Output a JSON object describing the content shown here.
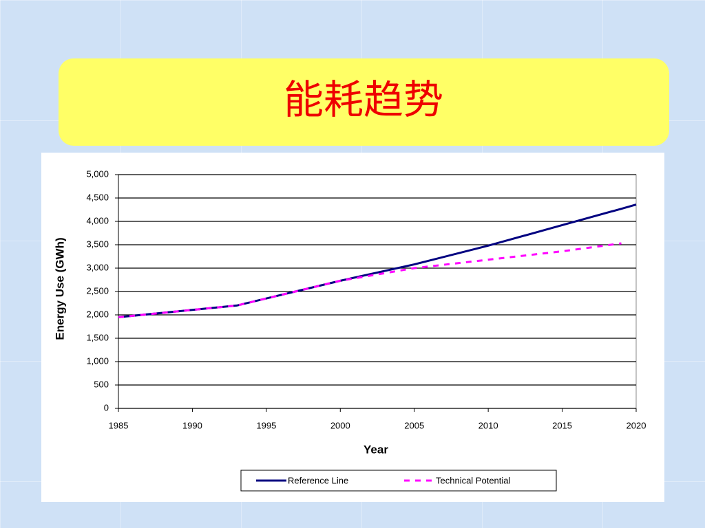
{
  "chart_data": {
    "type": "line",
    "title": "能耗趋势",
    "x_label": "Year",
    "y_label": "Energy Use (GWh)",
    "x": [
      1985,
      1993,
      2000,
      2005,
      2010,
      2015,
      2019,
      2020
    ],
    "series": [
      {
        "name": "Reference Line",
        "color": "#000080",
        "dash": false,
        "values": [
          1950,
          2200,
          2730,
          3080,
          3480,
          3920,
          4270,
          4360
        ]
      },
      {
        "name": "Technical Potential",
        "color": "#ff00ff",
        "dash": true,
        "values": [
          1950,
          2200,
          2730,
          3000,
          3180,
          3360,
          3530,
          null
        ]
      }
    ],
    "xlim": [
      1985,
      2020
    ],
    "xticks": [
      1985,
      1990,
      1995,
      2000,
      2005,
      2010,
      2015,
      2020
    ],
    "ylim": [
      0,
      5000
    ],
    "yticks": [
      0,
      500,
      {
        "value": 1000,
        "label": "1,000"
      },
      {
        "value": 1500,
        "label": "1,500"
      },
      {
        "value": 2000,
        "label": "2,000"
      },
      {
        "value": 2500,
        "label": "2,500"
      },
      {
        "value": 3000,
        "label": "3,000"
      },
      {
        "value": 3500,
        "label": "3,500"
      },
      {
        "value": 4000,
        "label": "4,000"
      },
      {
        "value": 4500,
        "label": "4,500"
      },
      {
        "value": 5000,
        "label": "5,000"
      }
    ],
    "grid": true,
    "legend": "bottom"
  }
}
